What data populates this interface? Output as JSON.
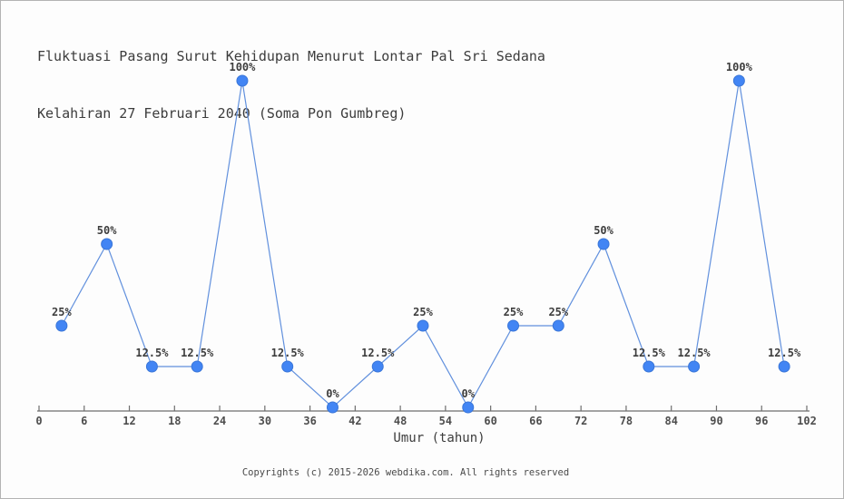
{
  "title": {
    "line1": "Fluktuasi Pasang Surut Kehidupan Menurut Lontar Pal Sri Sedana",
    "line2": "Kelahiran 27 Februari 2040 (Soma Pon Gumbreg)"
  },
  "chart_data": {
    "type": "line",
    "title": "Fluktuasi Pasang Surut Kehidupan Menurut Lontar Pal Sri Sedana Kelahiran 27 Februari 2040 (Soma Pon Gumbreg)",
    "xlabel": "Umur (tahun)",
    "ylabel": "",
    "x": [
      3,
      9,
      15,
      21,
      27,
      33,
      39,
      45,
      51,
      57,
      63,
      69,
      75,
      81,
      87,
      93,
      99
    ],
    "values": [
      25,
      50,
      12.5,
      12.5,
      100,
      12.5,
      0,
      12.5,
      25,
      0,
      25,
      25,
      50,
      12.5,
      12.5,
      100,
      12.5
    ],
    "point_labels": [
      "25%",
      "50%",
      "12.5%",
      "12.5%",
      "100%",
      "12.5%",
      "0%",
      "12.5%",
      "25%",
      "0%",
      "25%",
      "25%",
      "50%",
      "12.5%",
      "12.5%",
      "100%",
      "12.5%"
    ],
    "x_ticks": [
      0,
      6,
      12,
      18,
      24,
      30,
      36,
      42,
      48,
      54,
      60,
      66,
      72,
      78,
      84,
      90,
      96,
      102
    ],
    "xlim": [
      0,
      102
    ],
    "ylim": [
      0,
      100
    ],
    "grid": false,
    "legend": "none",
    "colors": {
      "line": "#6190dd",
      "marker_fill": "#4285f4",
      "marker_stroke": "#3a76d8",
      "axis": "#6e6e6e",
      "point_label": "#3d3d3d",
      "tick_label": "#4d4d4d"
    }
  },
  "footer": {
    "copyright": "Copyrights (c) 2015-2026 webdika.com. All rights reserved"
  }
}
